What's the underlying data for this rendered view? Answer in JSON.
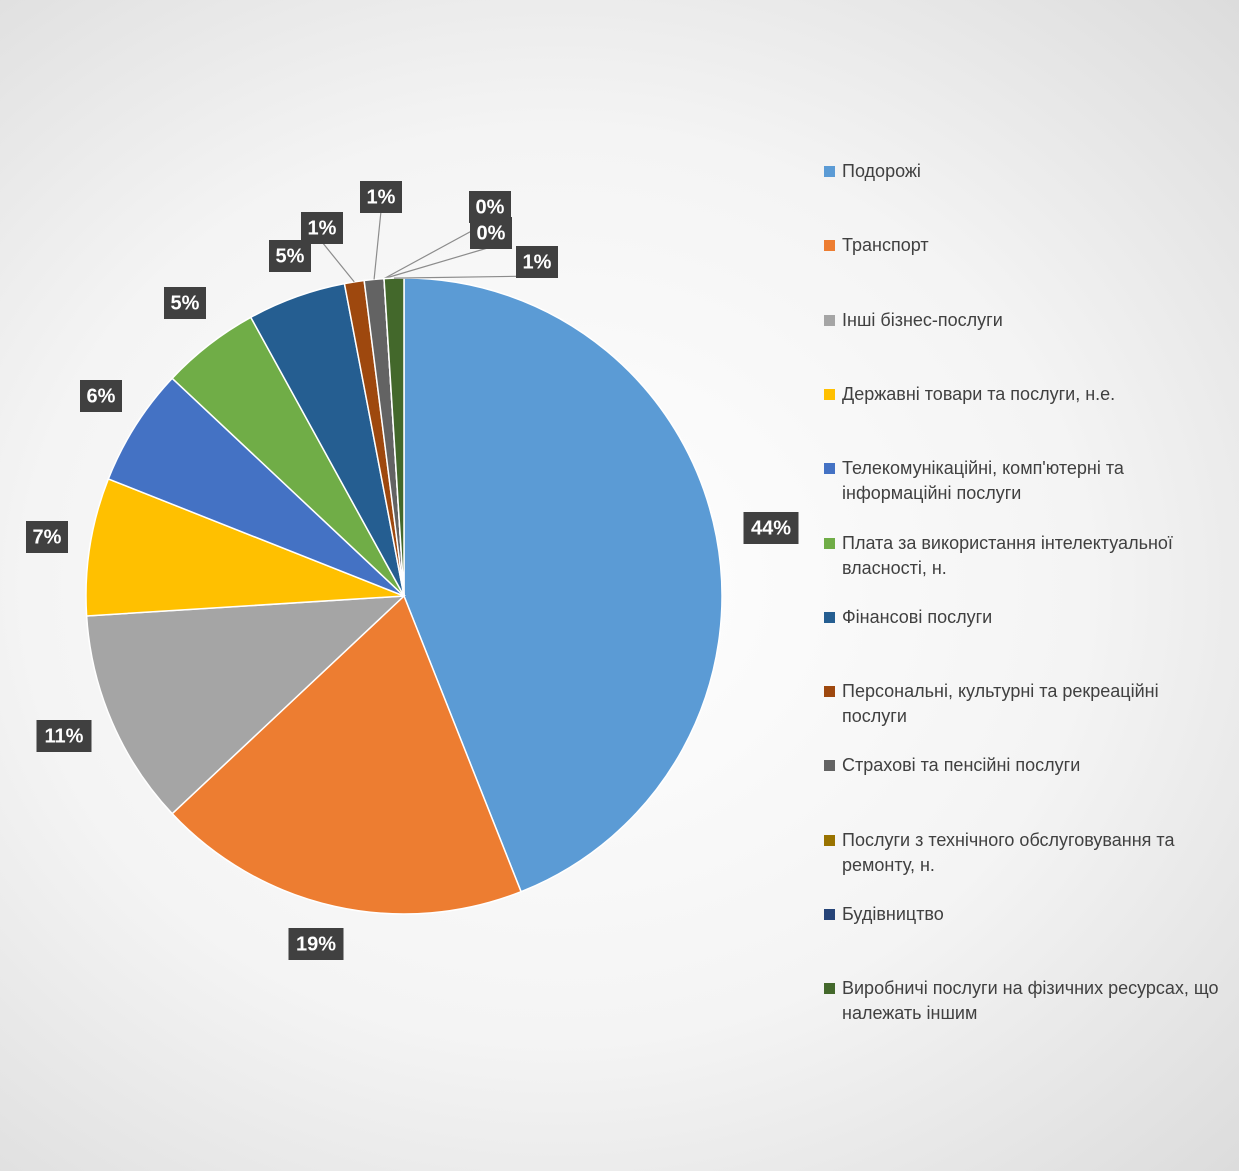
{
  "chart_data": {
    "type": "pie",
    "categories": [
      "Подорожі",
      "Транспорт",
      "Інші бізнес-послуги",
      "Державні товари та послуги, н.е.",
      "Телекомунікаційні, комп'ютерні та інформаційні послуги",
      "Плата за використання інтелектуальної власності, н.",
      "Фінансові послуги",
      "Персональні, культурні та рекреаційні послуги",
      "Страхові та пенсійні послуги",
      "Послуги з технічного обслуговування та ремонту, н.",
      "Будівництво",
      "Виробничі послуги на фізичних ресурсах, що належать іншим"
    ],
    "values": [
      44,
      19,
      11,
      7,
      6,
      5,
      5,
      1,
      1,
      0,
      0,
      1
    ],
    "value_labels": [
      "44%",
      "19%",
      "11%",
      "7%",
      "6%",
      "5%",
      "5%",
      "1%",
      "1%",
      "0%",
      "0%",
      "1%"
    ],
    "colors": [
      "#5b9bd5",
      "#ed7d31",
      "#a5a5a5",
      "#ffc000",
      "#4472c4",
      "#70ad47",
      "#255e91",
      "#9e480e",
      "#636363",
      "#997300",
      "#264478",
      "#43682b"
    ],
    "legend": "right"
  }
}
